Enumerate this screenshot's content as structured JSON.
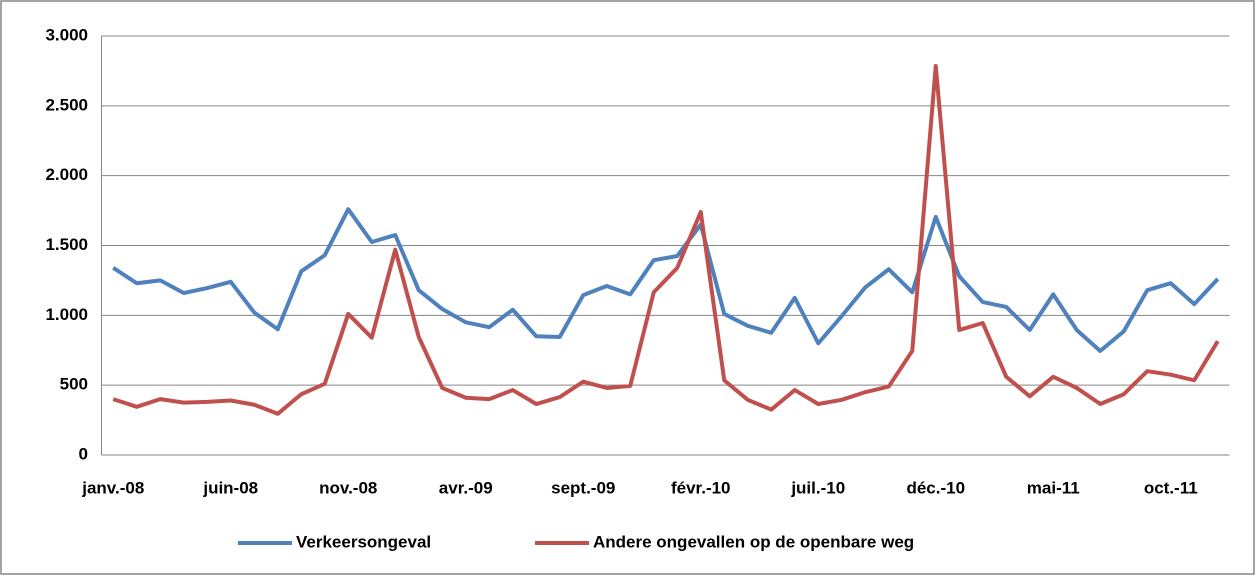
{
  "chart_data": {
    "type": "line",
    "categories": [
      "janv.-08",
      null,
      null,
      null,
      null,
      "juin-08",
      null,
      null,
      null,
      null,
      "nov.-08",
      null,
      null,
      null,
      null,
      "avr.-09",
      null,
      null,
      null,
      null,
      "sept.-09",
      null,
      null,
      null,
      null,
      "févr.-10",
      null,
      null,
      null,
      null,
      "juil.-10",
      null,
      null,
      null,
      null,
      "déc.-10",
      null,
      null,
      null,
      null,
      "mai-11",
      null,
      null,
      null,
      null,
      "oct.-11",
      null,
      null
    ],
    "series": [
      {
        "name": "Verkeersongeval",
        "color": "#4f81bd",
        "values": [
          1340,
          1230,
          1250,
          1160,
          1195,
          1240,
          1020,
          900,
          1315,
          1430,
          1760,
          1525,
          1575,
          1180,
          1045,
          950,
          915,
          1040,
          850,
          845,
          1145,
          1210,
          1150,
          1395,
          1425,
          1650,
          1010,
          925,
          875,
          1125,
          800,
          995,
          1200,
          1330,
          1165,
          1705,
          1280,
          1095,
          1060,
          895,
          1150,
          895,
          745,
          885,
          1180,
          1230,
          1080,
          1260
        ]
      },
      {
        "name": "Andere ongevallen op de openbare weg",
        "color": "#c0504d",
        "values": [
          400,
          345,
          400,
          375,
          380,
          390,
          360,
          295,
          435,
          510,
          1010,
          840,
          1470,
          845,
          480,
          410,
          400,
          465,
          365,
          415,
          525,
          480,
          495,
          1165,
          1340,
          1740,
          535,
          395,
          325,
          465,
          365,
          395,
          450,
          490,
          745,
          2785,
          895,
          945,
          560,
          420,
          560,
          480,
          365,
          435,
          600,
          575,
          535,
          815
        ]
      }
    ],
    "ylim": [
      0,
      3000
    ],
    "yticks": [
      0,
      500,
      {
        "value": 1000,
        "label": "1.000"
      },
      {
        "value": 1500,
        "label": "1.500"
      },
      {
        "value": 2000,
        "label": "2.000"
      },
      {
        "value": 2500,
        "label": "2.500"
      },
      {
        "value": 3000,
        "label": "3.000"
      }
    ],
    "grid": true,
    "legend": "bottom"
  }
}
